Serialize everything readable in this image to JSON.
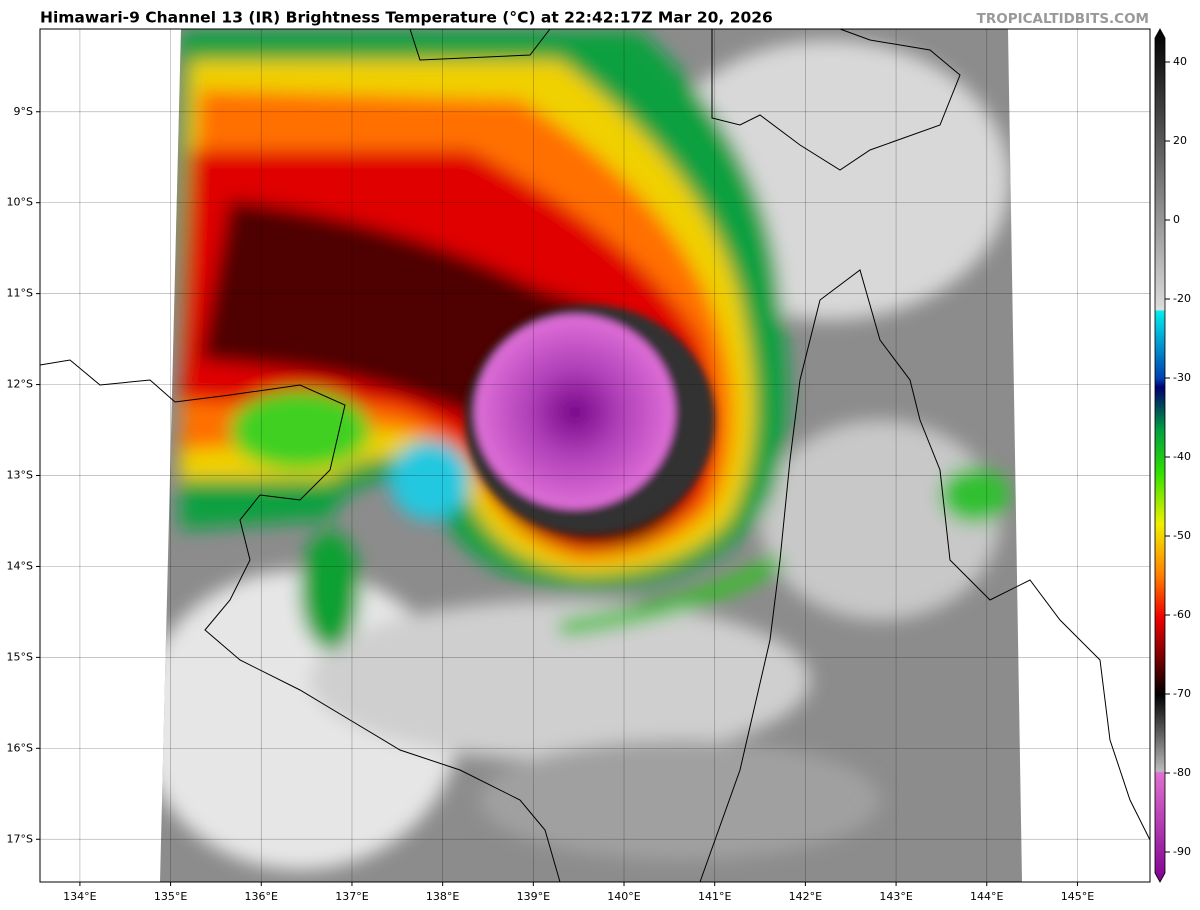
{
  "header": {
    "title": "Himawari-9 Channel 13 (IR) Brightness Temperature (°C) at 22:42:17Z Mar 20, 2026",
    "credit": "TROPICALTIDBITS.COM"
  },
  "map": {
    "xlim": [
      133.56,
      145.8
    ],
    "ylim": [
      -17.47,
      -8.09
    ],
    "lon_ticks": [
      {
        "value": 134,
        "label": "134°E"
      },
      {
        "value": 135,
        "label": "135°E"
      },
      {
        "value": 136,
        "label": "136°E"
      },
      {
        "value": 137,
        "label": "137°E"
      },
      {
        "value": 138,
        "label": "138°E"
      },
      {
        "value": 139,
        "label": "139°E"
      },
      {
        "value": 140,
        "label": "140°E"
      },
      {
        "value": 141,
        "label": "141°E"
      },
      {
        "value": 142,
        "label": "142°E"
      },
      {
        "value": 143,
        "label": "143°E"
      },
      {
        "value": 144,
        "label": "144°E"
      },
      {
        "value": 145,
        "label": "145°E"
      }
    ],
    "lat_ticks": [
      {
        "value": -9,
        "label": "9°S"
      },
      {
        "value": -10,
        "label": "10°S"
      },
      {
        "value": -11,
        "label": "11°S"
      },
      {
        "value": -12,
        "label": "12°S"
      },
      {
        "value": -13,
        "label": "13°S"
      },
      {
        "value": -14,
        "label": "14°S"
      },
      {
        "value": -15,
        "label": "15°S"
      },
      {
        "value": -16,
        "label": "16°S"
      },
      {
        "value": -17,
        "label": "17°S"
      }
    ]
  },
  "colorbar": {
    "ticks": [
      40,
      20,
      0,
      -20,
      -30,
      -40,
      -50,
      -60,
      -70,
      -80,
      -90
    ]
  }
}
